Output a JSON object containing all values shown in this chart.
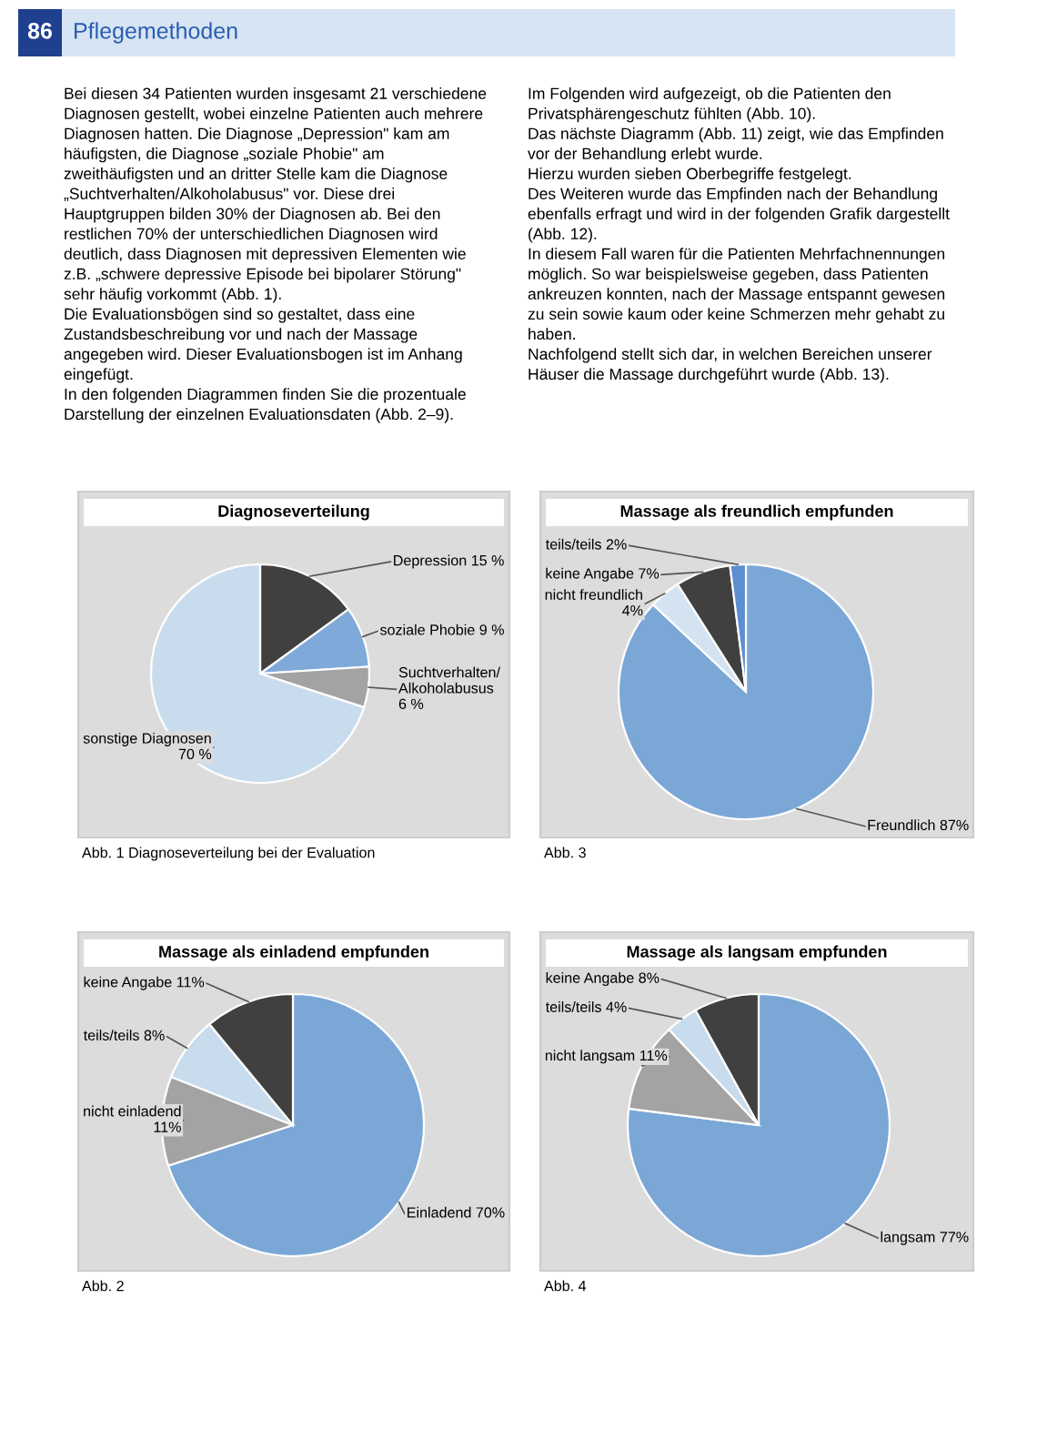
{
  "chart_data": [
    {
      "type": "pie",
      "title": "Diagnoseverteilung",
      "categories": [
        "Depression",
        "soziale Phobie",
        "Suchtverhalten/Alkoholabusus",
        "sonstige Diagnosen"
      ],
      "values": [
        15,
        9,
        6,
        70
      ],
      "value_labels": [
        "15 %",
        "9 %",
        "6 %",
        "70 %"
      ],
      "colors": [
        "#404040",
        "#7fa9d8",
        "#a3a3a3",
        "#c8dcee"
      ],
      "annotations": [
        "86",
        "Pflegemethoden",
        "Bei diesen 34 Patienten wurden insgesamt 21 verschiedene Diagnosen gestellt, wobei einzelne Patienten auch mehrere Diagnosen hatten. Die Diagnose „Depression\" kam am häufigsten, die Diagnose „soziale Phobie\" am zweithäufigsten und an dritter Stelle kam die Diagnose „Suchtverhalten/Alkoholabusus\" vor. Diese drei Hauptgruppen bilden 30% der Diagnosen ab. Bei den restlichen 70% der unterschiedlichen Diagnosen wird deutlich, dass Diagnosen mit depressiven Elementen wie z.B. „schwere depressive Episode bei bipolarer Störung\" sehr häufig vorkommt (Abb. 1).\nDie Evaluationsbögen sind so gestaltet, dass eine Zustandsbeschreibung vor und nach der Massage angegeben wird. Dieser Evaluationsbogen ist im Anhang eingefügt.\nIn den folgenden Diagrammen finden Sie die prozentuale Darstellung der einzelnen Evaluationsdaten (Abb. 2–9).",
        "Im Folgenden wird aufgezeigt, ob die Patienten den Privatsphärengeschutz fühlten (Abb. 10).\nDas nächste Diagramm (Abb. 11) zeigt, wie das Empfinden vor der Behandlung erlebt wurde.\nHierzu wurden sieben Oberbegriffe festgelegt.\nDes Weiteren wurde das Empfinden nach der Behandlung ebenfalls erfragt und wird in der folgenden Grafik dargestellt (Abb. 12).\nIn diesem Fall waren für die Patienten Mehrfachnennungen möglich. So war beispielsweise gegeben, dass Patienten ankreuzen konnten, nach der Massage entspannt gewesen zu sein sowie kaum oder keine Schmerzen mehr gehabt zu haben.\nNachfolgend stellt sich dar, in welchen Bereichen unserer Häuser die Massage durchgeführt wurde (Abb. 13).",
        "Abb. 1 Diagnoseverteilung bei der Evaluation"
      ]
    },
    {
      "type": "pie",
      "title": "Massage als freundlich empfunden",
      "categories": [
        "Freundlich",
        "nicht freundlich",
        "keine Angabe",
        "teils/teils"
      ],
      "values": [
        87,
        4,
        7,
        2
      ],
      "value_labels": [
        "87%",
        "4%",
        "7%",
        "2%"
      ],
      "colors": [
        "#7ba7d7",
        "#d3e3f1",
        "#404040",
        "#5b8fd0"
      ],
      "annotations": [
        "Abb. 3"
      ]
    },
    {
      "type": "pie",
      "title": "Massage als einladend empfunden",
      "categories": [
        "Einladend",
        "nicht einladend",
        "teils/teils",
        "keine Angabe"
      ],
      "values": [
        70,
        11,
        8,
        11
      ],
      "value_labels": [
        "70%",
        "11%",
        "8%",
        "11%"
      ],
      "colors": [
        "#7ba7d7",
        "#a3a3a3",
        "#c8dcee",
        "#404040"
      ],
      "annotations": [
        "Abb. 2"
      ]
    },
    {
      "type": "pie",
      "title": "Massage als langsam empfunden",
      "categories": [
        "langsam",
        "nicht langsam",
        "teils/teils",
        "keine Angabe"
      ],
      "values": [
        77,
        11,
        4,
        8
      ],
      "value_labels": [
        "77%",
        "11%",
        "4%",
        "8%"
      ],
      "colors": [
        "#7ba7d7",
        "#a3a3a3",
        "#c8dcee",
        "#404040"
      ],
      "annotations": [
        "Abb. 4"
      ]
    }
  ]
}
